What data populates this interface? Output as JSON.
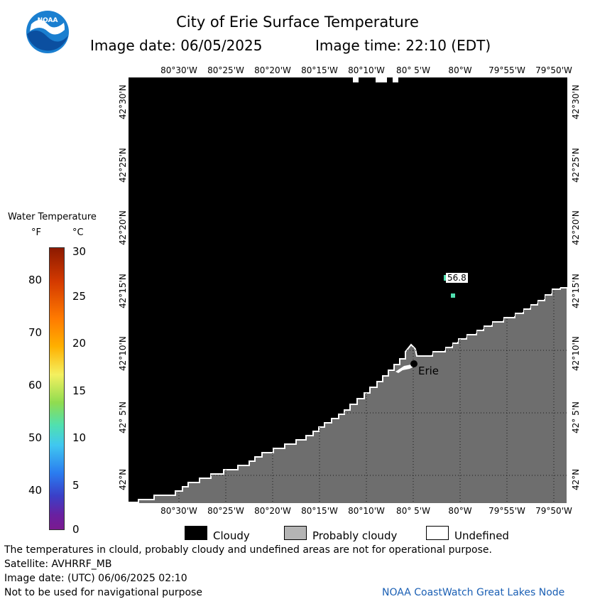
{
  "header": {
    "title": "City of Erie Surface Temperature",
    "image_date": "Image date: 06/05/2025",
    "image_time": "Image time: 22:10 (EDT)"
  },
  "logo": {
    "text": "NOAA",
    "icon": "noaa-logo-icon"
  },
  "map": {
    "lon_top": [
      "80°30'W",
      "80°25'W",
      "80°20'W",
      "80°15'W",
      "80°10'W",
      "80° 5'W",
      "80°W",
      "79°55'W",
      "79°50'W"
    ],
    "lon_bottom": [
      "80°30'W",
      "80°25'W",
      "80°20'W",
      "80°15'W",
      "80°10'W",
      "80° 5'W",
      "80°W",
      "79°55'W",
      "79°50'W"
    ],
    "lat_left": [
      "42°30'N",
      "42°25'N",
      "42°20'N",
      "42°15'N",
      "42°10'N",
      "42° 5'N",
      "42°N"
    ],
    "lat_right": [
      "42°30'N",
      "42°25'N",
      "42°20'N",
      "42°15'N",
      "42°10'N",
      "42° 5'N",
      "42°N"
    ],
    "city_label": "Erie",
    "temp_label": "56.8",
    "colors": {
      "cloud": "#000000",
      "probably_cloudy": "#6e6e6e",
      "land": "#6e6e6e",
      "undefined": "#ffffff"
    }
  },
  "colorbar": {
    "title": "Water Temperature",
    "unit_f": "°F",
    "unit_c": "°C",
    "f_ticks": [
      "80",
      "70",
      "60",
      "50",
      "40"
    ],
    "c_ticks": [
      "30",
      "25",
      "20",
      "15",
      "10",
      "5",
      "0"
    ]
  },
  "legend": {
    "cloudy": "Cloudy",
    "probably_cloudy": "Probably cloudy",
    "undefined": "Undefined"
  },
  "notes": {
    "disclaimer": "The temperatures in clould, probably cloudy and undefined areas are not for operational purpose.",
    "satellite": "Satellite: AVHRRF_MB",
    "utc_date": "Image date: (UTC) 06/06/2025  02:10",
    "navigation": "Not to be used for navigational purpose",
    "credit": "NOAA CoastWatch Great Lakes Node"
  }
}
